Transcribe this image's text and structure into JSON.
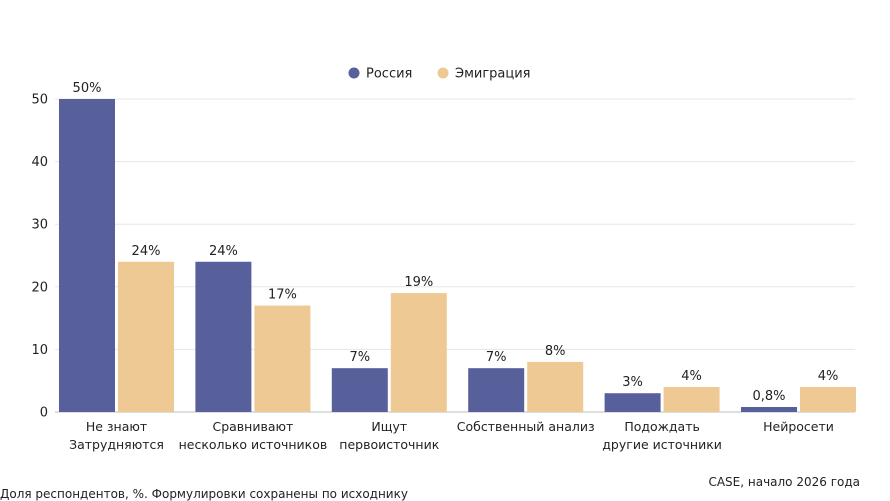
{
  "chart_data": {
    "type": "bar",
    "categories": [
      [
        "Не знают",
        "Затрудняются"
      ],
      [
        "Сравнивают",
        "несколько источников"
      ],
      [
        "Ищут",
        "первоисточник"
      ],
      [
        "Собственный анализ"
      ],
      [
        "Подождать",
        "другие источники"
      ],
      [
        "Нейросети"
      ]
    ],
    "series": [
      {
        "name": "Россия",
        "color": "#57609a",
        "values": [
          50,
          24,
          7,
          7,
          3,
          0.8
        ],
        "labels": [
          "50%",
          "24%",
          "7%",
          "7%",
          "3%",
          "0,8%"
        ]
      },
      {
        "name": "Эмиграция",
        "color": "#efc994",
        "values": [
          24,
          17,
          19,
          8,
          4,
          4
        ],
        "labels": [
          "24%",
          "17%",
          "19%",
          "8%",
          "4%",
          "4%"
        ]
      }
    ],
    "ylim": [
      0,
      50
    ],
    "yticks": [
      0,
      10,
      20,
      30,
      40,
      50
    ],
    "grid": true,
    "legend_position": "top-center",
    "source": "CASE, начало 2026 года",
    "footnote": "Доля респондентов, %. Формулировки сохранены по исходнику"
  }
}
